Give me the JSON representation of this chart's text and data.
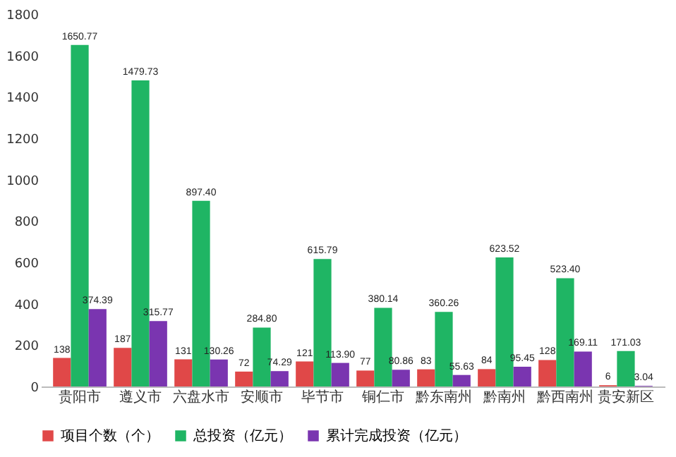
{
  "chart_data": {
    "type": "bar",
    "categories": [
      "贵阳市",
      "遵义市",
      "六盘水市",
      "安顺市",
      "毕节市",
      "铜仁市",
      "黔东南州",
      "黔南州",
      "黔西南州",
      "贵安新区"
    ],
    "series": [
      {
        "name": "项目个数（个）",
        "color": "#e04848",
        "values": [
          138,
          187,
          131,
          72,
          121,
          77,
          83,
          84,
          128,
          6
        ],
        "value_labels": [
          "138",
          "187",
          "131",
          "72",
          "121",
          "77",
          "83",
          "84",
          "128",
          "6"
        ]
      },
      {
        "name": "总投资（亿元）",
        "color": "#1fb564",
        "values": [
          1650.77,
          1479.73,
          897.4,
          284.8,
          615.79,
          380.14,
          360.26,
          623.52,
          523.4,
          171.03
        ],
        "value_labels": [
          "1650.77",
          "1479.73",
          "897.40",
          "284.80",
          "615.79",
          "380.14",
          "360.26",
          "623.52",
          "523.40",
          "171.03"
        ]
      },
      {
        "name": "累计完成投资（亿元）",
        "color": "#7a35b0",
        "values": [
          374.39,
          315.77,
          130.26,
          74.29,
          113.9,
          80.86,
          55.63,
          95.45,
          169.11,
          3.04
        ],
        "value_labels": [
          "374.39",
          "315.77",
          "130.26",
          "74.29",
          "113.90",
          "80.86",
          "55.63",
          "95.45",
          "169.11",
          "3.04"
        ]
      }
    ],
    "ylim": [
      0,
      1800
    ],
    "yticks": [
      0,
      200,
      400,
      600,
      800,
      1000,
      1200,
      1400,
      1600,
      1800
    ],
    "grid": false,
    "legend": "bottom"
  }
}
